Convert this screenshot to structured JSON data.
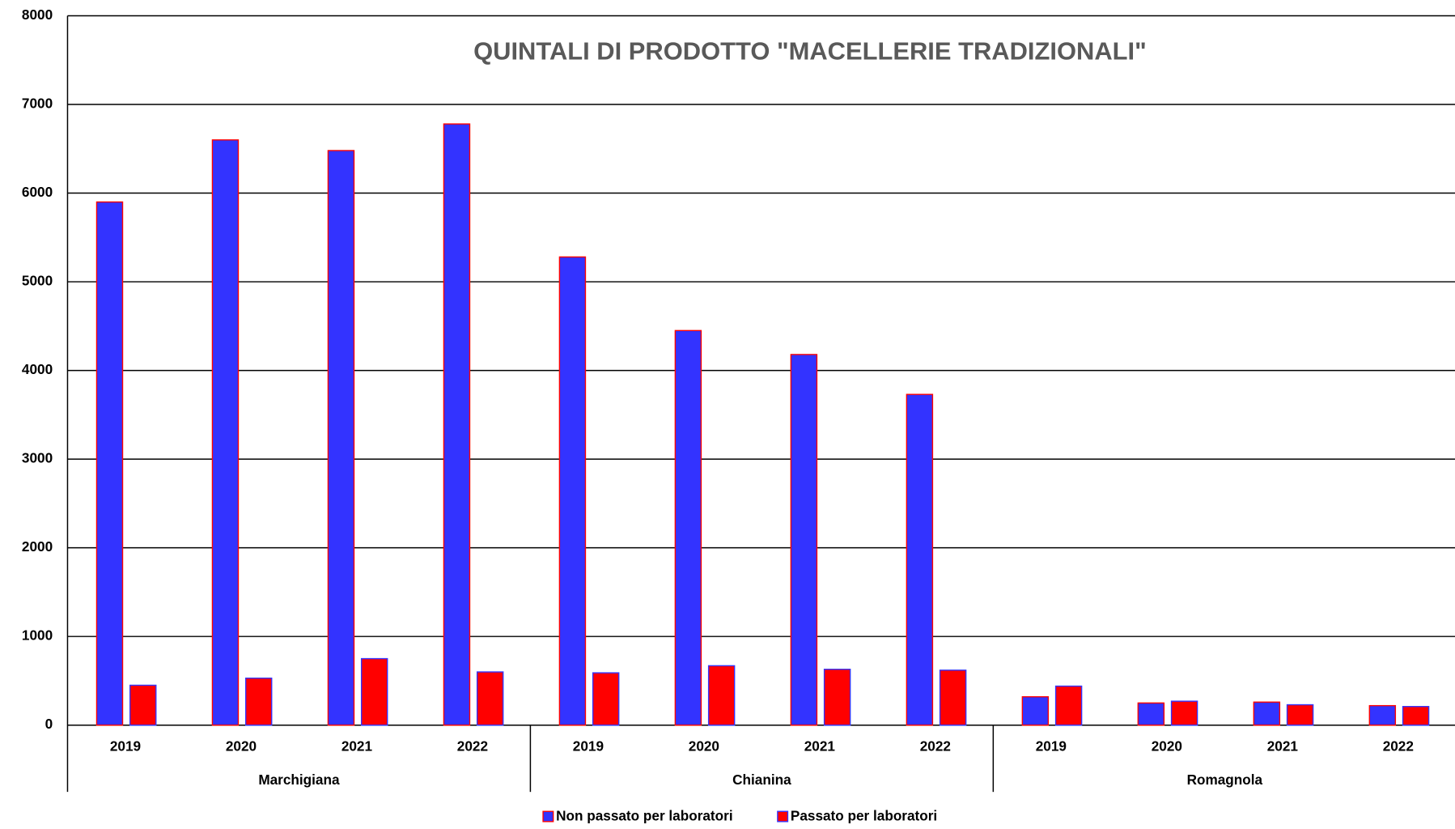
{
  "chart_data": {
    "type": "bar",
    "title": "QUINTALI DI PRODOTTO \"MACELLERIE TRADIZIONALI\"",
    "categories": [
      "2019",
      "2020",
      "2021",
      "2022",
      "2019",
      "2020",
      "2021",
      "2022",
      "2019",
      "2020",
      "2021",
      "2022"
    ],
    "groups": [
      "Marchigiana",
      "Chianina",
      "Romagnola"
    ],
    "series": [
      {
        "name": "Non passato per laboratori",
        "color": "#3333ff",
        "border": "#ff0000",
        "values": [
          5900,
          6600,
          6480,
          6780,
          5280,
          4450,
          4180,
          3730,
          320,
          250,
          260,
          220
        ]
      },
      {
        "name": "Passato per laboratori",
        "color": "#ff0000",
        "border": "#3333ff",
        "values": [
          450,
          530,
          750,
          600,
          590,
          670,
          630,
          620,
          440,
          270,
          230,
          210
        ]
      }
    ],
    "ylim": [
      0,
      8000
    ],
    "yticks": [
      0,
      1000,
      2000,
      3000,
      4000,
      5000,
      6000,
      7000,
      8000
    ],
    "grid": true,
    "legend": "bottom"
  }
}
